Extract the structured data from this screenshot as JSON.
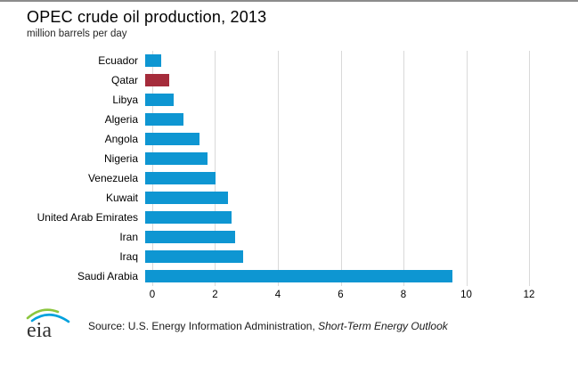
{
  "header": {
    "title": "OPEC crude oil production, 2013",
    "subtitle": "million barrels  per day"
  },
  "chart_data": {
    "type": "bar",
    "orientation": "horizontal",
    "title": "OPEC crude oil production, 2013",
    "xlabel": "million barrels per day",
    "ylabel": "",
    "categories": [
      "Ecuador",
      "Qatar",
      "Libya",
      "Algeria",
      "Angola",
      "Nigeria",
      "Venezuela",
      "Kuwait",
      "United Arab Emirates",
      "Iran",
      "Iraq",
      "Saudi Arabia"
    ],
    "values": [
      0.5,
      0.75,
      0.9,
      1.2,
      1.7,
      1.95,
      2.2,
      2.6,
      2.7,
      2.8,
      3.05,
      9.6
    ],
    "bar_colors": [
      "#0e96d2",
      "#a52c3b",
      "#0e96d2",
      "#0e96d2",
      "#0e96d2",
      "#0e96d2",
      "#0e96d2",
      "#0e96d2",
      "#0e96d2",
      "#0e96d2",
      "#0e96d2",
      "#0e96d2"
    ],
    "default_bar_color": "#0e96d2",
    "highlight": {
      "category": "Qatar",
      "color": "#a52c3b"
    },
    "xlim": [
      0,
      12
    ],
    "x_ticks": [
      "0",
      "2",
      "4",
      "6",
      "8",
      "10",
      "12"
    ],
    "x_tick_values": [
      0,
      2,
      4,
      6,
      8,
      10,
      12
    ],
    "grid": "vertical",
    "gridline_color": "#d9d9d9",
    "legend": "none"
  },
  "footer": {
    "logo_text": "eia",
    "logo_arc_green": "#8cc63e",
    "logo_arc_blue": "#00a1dd",
    "source_prefix": "Source: U.S. Energy Information  Administration, ",
    "source_italic": "Short-Term  Energy  Outlook"
  }
}
